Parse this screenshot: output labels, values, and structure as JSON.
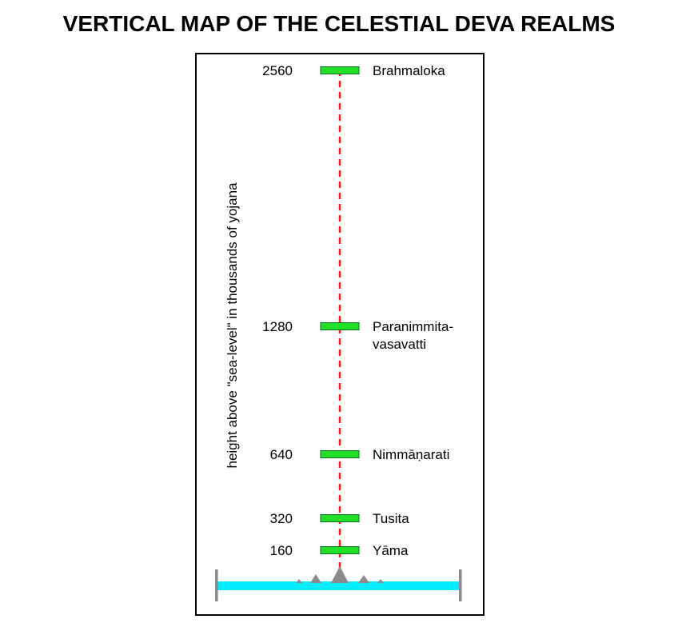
{
  "title": "VERTICAL MAP OF THE CELESTIAL DEVA REALMS",
  "chart_data": {
    "type": "scatter",
    "title": "VERTICAL MAP OF THE CELESTIAL DEVA REALMS",
    "ylabel": "height above \"sea-level\" in thousands of yojana",
    "xlabel": "",
    "ylim": [
      0,
      2560
    ],
    "grid": false,
    "legend": "none",
    "points": [
      {
        "value": 2560,
        "label": "2560",
        "name": [
          "Brahmaloka"
        ]
      },
      {
        "value": 1280,
        "label": "1280",
        "name": [
          "Paranimmita-",
          "vasavatti"
        ]
      },
      {
        "value": 640,
        "label": "640",
        "name": [
          "Nimmāṇarati"
        ]
      },
      {
        "value": 320,
        "label": "320",
        "name": [
          "Tusita"
        ]
      },
      {
        "value": 160,
        "label": "160",
        "name": [
          "Yāma"
        ]
      }
    ],
    "colors": {
      "marker": "#22e02a",
      "marker_stroke": "#0a6e10",
      "axis_line": "#ee2222",
      "water": "#00eeff",
      "mountain": "#8a8a8a",
      "post": "#8a8a8a",
      "frame": "#000000"
    }
  }
}
